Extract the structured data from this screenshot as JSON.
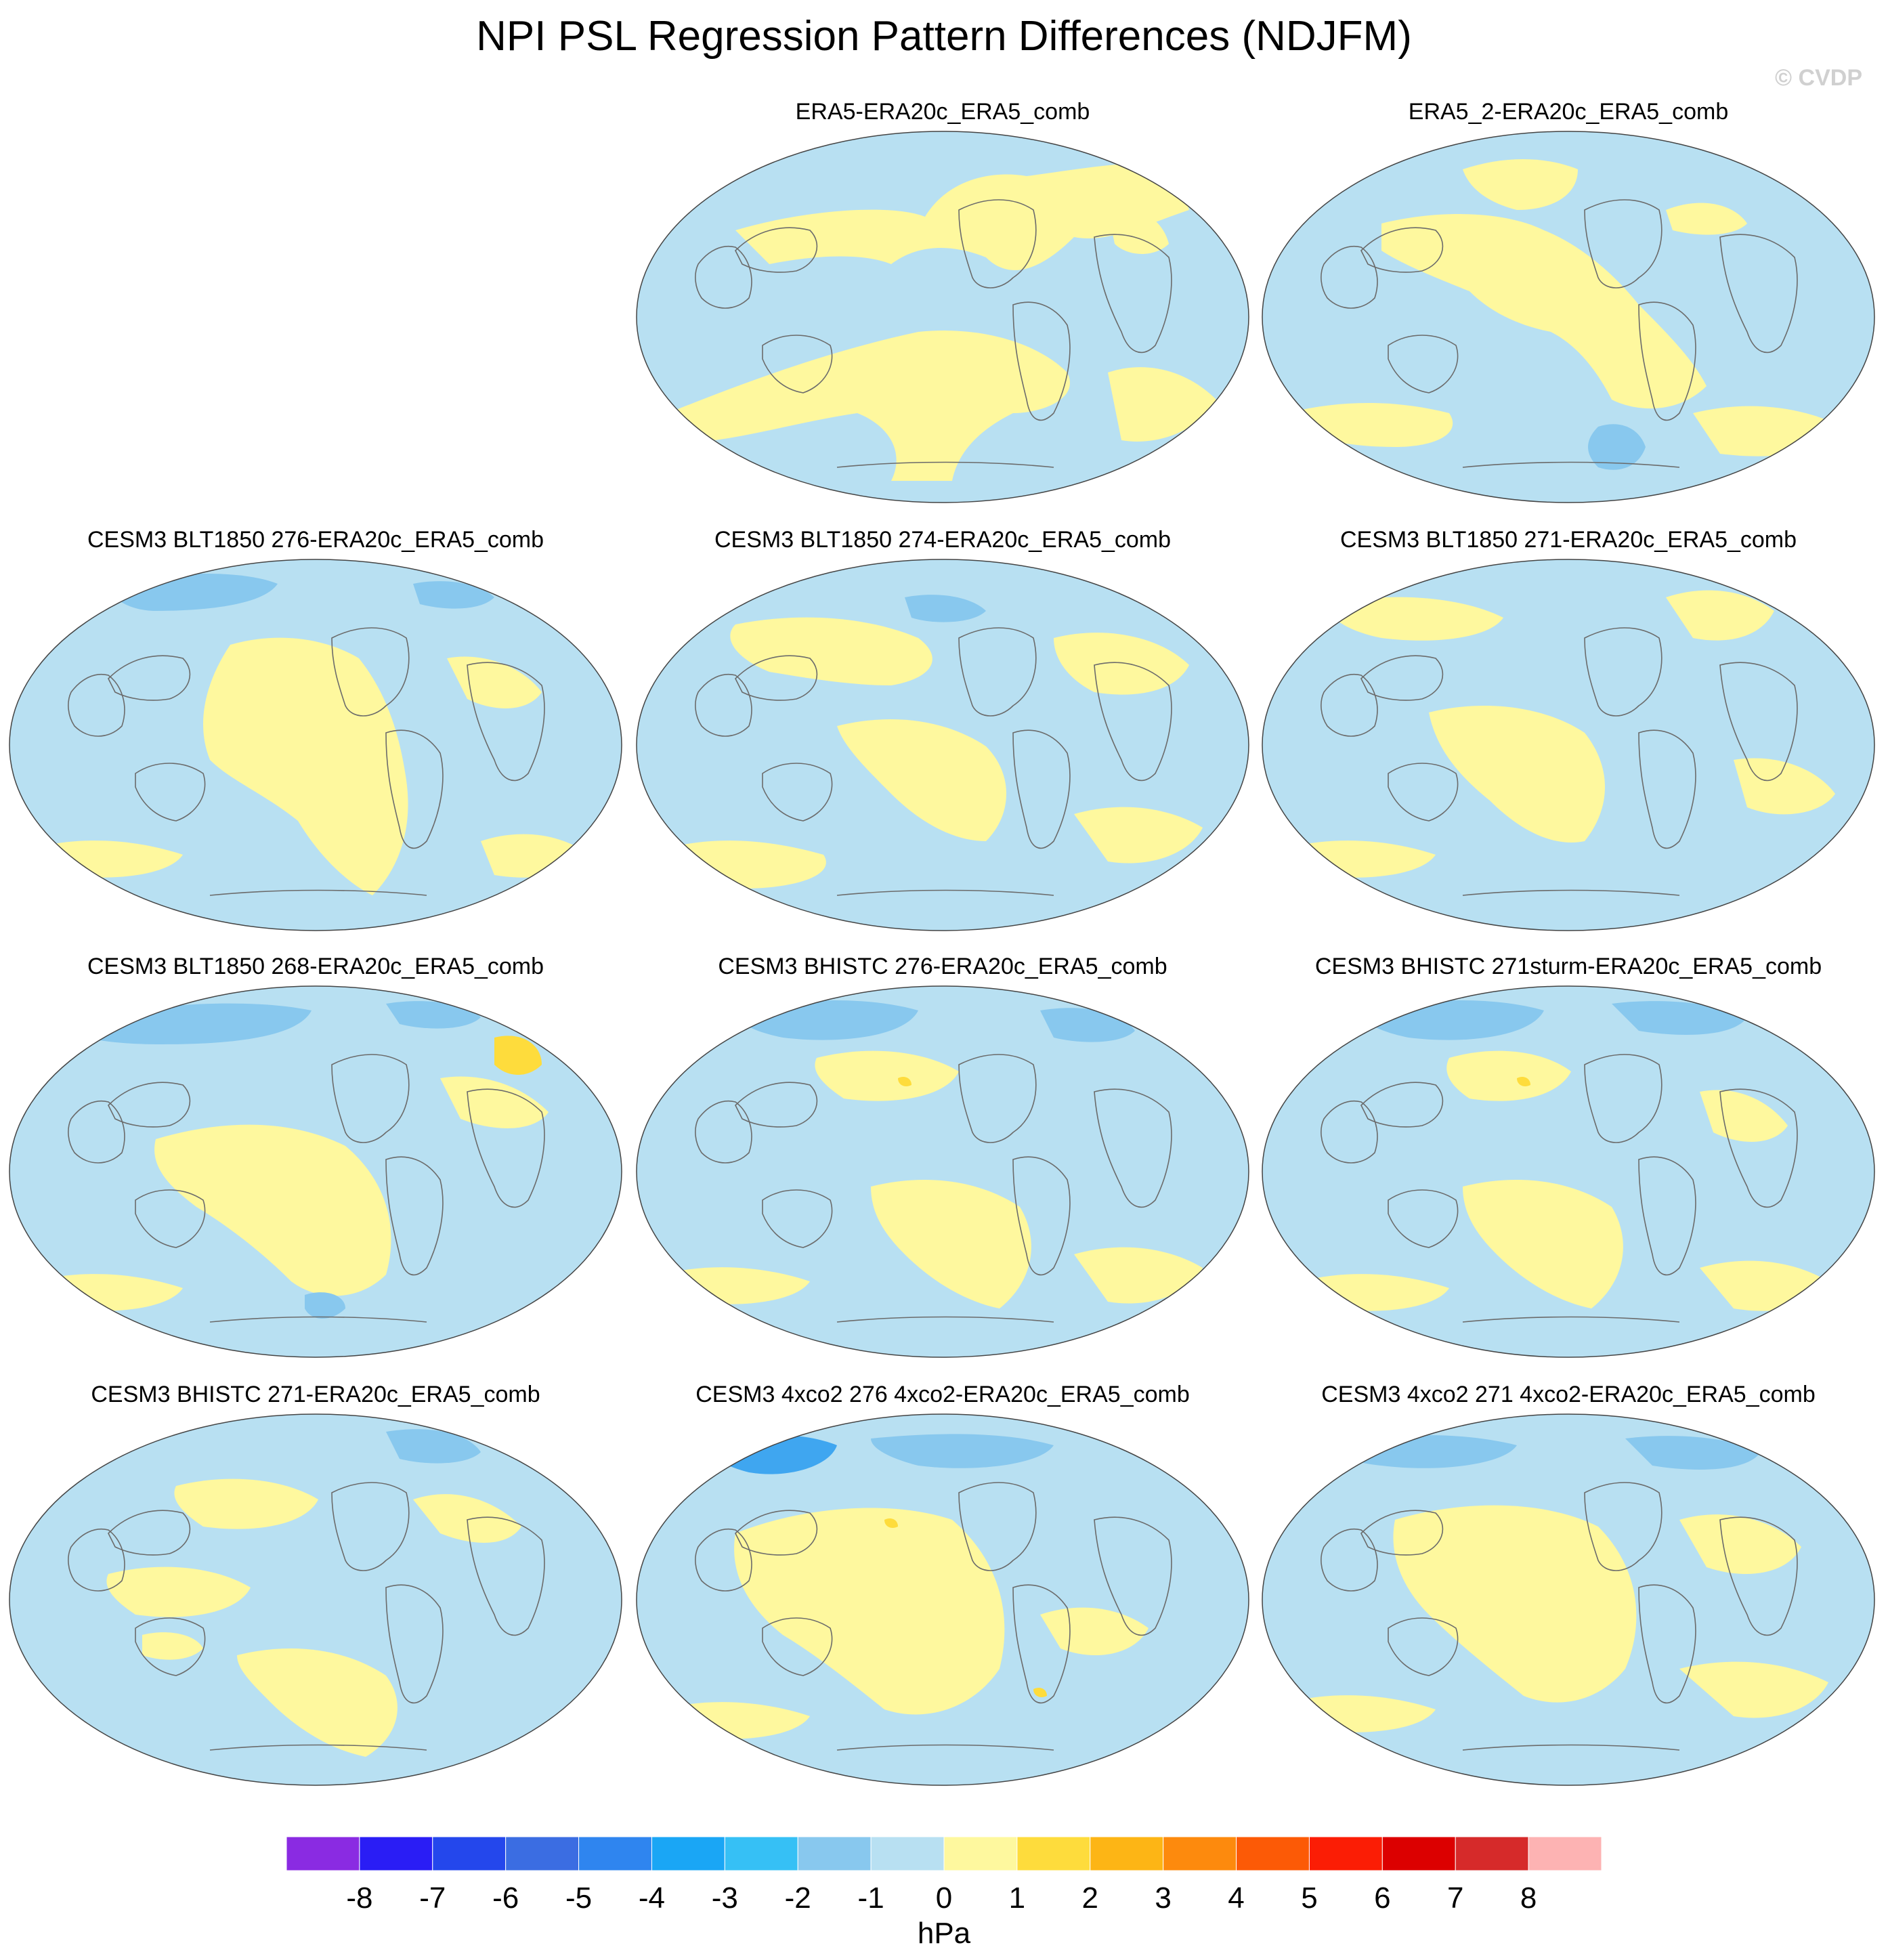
{
  "title": "NPI PSL Regression Pattern Differences (NDJFM)",
  "watermark": "© CVDP",
  "colors": {
    "neg_weak": "#b8e0f2",
    "neg_mod": "#88c8ee",
    "neg_strong": "#3fa6f0",
    "pos_weak": "#fef89e",
    "pos_mod": "#fedc3c",
    "coast": "#6b6b6b",
    "outline": "#444444"
  },
  "panels": [
    {
      "title": "ERA5-ERA20c_ERA5_comb"
    },
    {
      "title": "ERA5_2-ERA20c_ERA5_comb"
    },
    {
      "title": "CESM3 BLT1850 276-ERA20c_ERA5_comb"
    },
    {
      "title": "CESM3 BLT1850 274-ERA20c_ERA5_comb"
    },
    {
      "title": "CESM3 BLT1850 271-ERA20c_ERA5_comb"
    },
    {
      "title": "CESM3 BLT1850 268-ERA20c_ERA5_comb"
    },
    {
      "title": "CESM3 BHISTC 276-ERA20c_ERA5_comb"
    },
    {
      "title": "CESM3 BHISTC 271sturm-ERA20c_ERA5_comb"
    },
    {
      "title": "CESM3 BHISTC 271-ERA20c_ERA5_comb"
    },
    {
      "title": "CESM3 4xco2 276 4xco2-ERA20c_ERA5_comb"
    },
    {
      "title": "CESM3 4xco2 271 4xco2-ERA20c_ERA5_comb"
    }
  ],
  "colorbar": {
    "unit": "hPa",
    "labels": [
      "-8",
      "-7",
      "-6",
      "-5",
      "-4",
      "-3",
      "-2",
      "-1",
      "0",
      "1",
      "2",
      "3",
      "4",
      "5",
      "6",
      "7",
      "8"
    ],
    "colors": [
      "#8a2be2",
      "#2a1df5",
      "#2447ec",
      "#3b6de2",
      "#2f85ef",
      "#1aa6f5",
      "#36c0f5",
      "#88c8ee",
      "#b8e0f2",
      "#fef89e",
      "#fedc3c",
      "#fdb515",
      "#fd8a0d",
      "#fc5a06",
      "#fb1d05",
      "#dc0000",
      "#d62a2a",
      "#fdb3b3"
    ]
  }
}
